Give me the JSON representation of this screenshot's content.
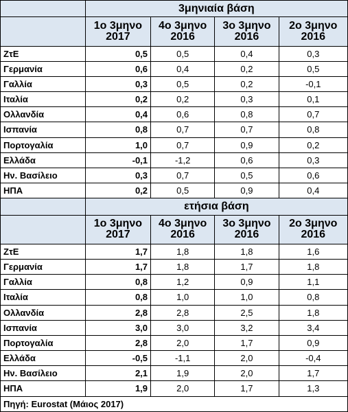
{
  "sections": [
    {
      "title": "3μηνιαία βάση",
      "headers": [
        {
          "l1": "1ο 3μηνο",
          "l2": "2017"
        },
        {
          "l1": "4ο 3μηνο",
          "l2": "2016"
        },
        {
          "l1": "3ο 3μηνο",
          "l2": "2016"
        },
        {
          "l1": "2ο 3μηνο",
          "l2": "2016"
        }
      ],
      "rows": [
        {
          "label": "ΖτΕ",
          "values": [
            "0,5",
            "0,5",
            "0,4",
            "0,3"
          ]
        },
        {
          "label": "Γερμανία",
          "values": [
            "0,6",
            "0,4",
            "0,2",
            "0,5"
          ]
        },
        {
          "label": "Γαλλία",
          "values": [
            "0,3",
            "0,5",
            "0,2",
            "-0,1"
          ]
        },
        {
          "label": "Ιταλία",
          "values": [
            "0,2",
            "0,2",
            "0,3",
            "0,1"
          ]
        },
        {
          "label": "Ολλανδία",
          "values": [
            "0,4",
            "0,6",
            "0,8",
            "0,7"
          ]
        },
        {
          "label": "Ισπανία",
          "values": [
            "0,8",
            "0,7",
            "0,7",
            "0,8"
          ]
        },
        {
          "label": "Πορτογαλία",
          "values": [
            "1,0",
            "0,7",
            "0,9",
            "0,2"
          ]
        },
        {
          "label": "Ελλάδα",
          "values": [
            "-0,1",
            "-1,2",
            "0,6",
            "0,3"
          ]
        },
        {
          "label": "Ην. Βασίλειο",
          "values": [
            "0,3",
            "0,7",
            "0,5",
            "0,6"
          ]
        },
        {
          "label": "ΗΠΑ",
          "values": [
            "0,2",
            "0,5",
            "0,9",
            "0,4"
          ]
        }
      ]
    },
    {
      "title": "ετήσια βάση",
      "headers": [
        {
          "l1": "1ο 3μηνο",
          "l2": "2017"
        },
        {
          "l1": "4ο 3μηνο",
          "l2": "2016"
        },
        {
          "l1": "3ο 3μηνο",
          "l2": "2016"
        },
        {
          "l1": "2ο 3μηνο",
          "l2": "2016"
        }
      ],
      "rows": [
        {
          "label": "ΖτΕ",
          "values": [
            "1,7",
            "1,8",
            "1,8",
            "1,6"
          ]
        },
        {
          "label": "Γερμανία",
          "values": [
            "1,7",
            "1,8",
            "1,7",
            "1,8"
          ]
        },
        {
          "label": "Γαλλία",
          "values": [
            "0,8",
            "1,2",
            "0,9",
            "1,1"
          ]
        },
        {
          "label": "Ιταλία",
          "values": [
            "0,8",
            "1,0",
            "1,0",
            "0,8"
          ]
        },
        {
          "label": "Ολλανδία",
          "values": [
            "2,8",
            "2,8",
            "2,5",
            "1,8"
          ]
        },
        {
          "label": "Ισπανία",
          "values": [
            "3,0",
            "3,0",
            "3,2",
            "3,4"
          ]
        },
        {
          "label": "Πορτογαλία",
          "values": [
            "2,8",
            "2,0",
            "1,7",
            "0,9"
          ]
        },
        {
          "label": "Ελλάδα",
          "values": [
            "-0,5",
            "-1,1",
            "2,0",
            "-0,4"
          ]
        },
        {
          "label": "Ην. Βασίλειο",
          "values": [
            "2,1",
            "1,9",
            "2,0",
            "1,7"
          ]
        },
        {
          "label": "ΗΠΑ",
          "values": [
            "1,9",
            "2,0",
            "1,7",
            "1,3"
          ]
        }
      ]
    }
  ],
  "source": "Πηγή: Eurostat (Μάιος 2017)",
  "colors": {
    "header_background": "#dce6f1",
    "border": "#000000",
    "text": "#000000"
  }
}
